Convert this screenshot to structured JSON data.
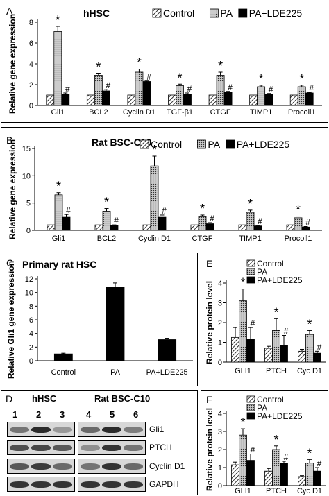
{
  "colors": {
    "control": "hatched",
    "pa": "stipple-grey",
    "lde": "#000000"
  },
  "chart_data": [
    {
      "id": "A",
      "type": "bar",
      "panel_label": "A",
      "title": "hHSC",
      "ylabel": "Relative gene expression",
      "ylim": [
        0,
        8
      ],
      "yticks": [
        0,
        2,
        4,
        6,
        8
      ],
      "categories": [
        "Gli1",
        "BCL2",
        "Cyclin D1",
        "TGF-β1",
        "CTGF",
        "TIMP1",
        "Procoll1"
      ],
      "series": [
        {
          "name": "Control",
          "values": [
            1,
            1,
            1,
            1,
            1,
            1,
            1
          ],
          "errors": [
            0,
            0,
            0,
            0,
            0,
            0,
            0
          ]
        },
        {
          "name": "PA",
          "values": [
            7.1,
            2.9,
            3.2,
            1.9,
            2.9,
            1.8,
            1.8
          ],
          "errors": [
            0.5,
            0.2,
            0.3,
            0.15,
            0.3,
            0.15,
            0.15
          ]
        },
        {
          "name": "PA+LDE225",
          "values": [
            1.1,
            1.4,
            2.3,
            1.1,
            1.3,
            1.1,
            1.2
          ],
          "errors": [
            0.1,
            0.15,
            0.05,
            0.1,
            0.05,
            0.05,
            0.05
          ]
        }
      ],
      "marks": [
        [
          "",
          "*",
          "#"
        ],
        [
          "",
          "*",
          "#"
        ],
        [
          "",
          "*",
          "#"
        ],
        [
          "",
          "*",
          "#"
        ],
        [
          "",
          "*",
          "#"
        ],
        [
          "",
          "*",
          "#"
        ],
        [
          "",
          "*",
          "#"
        ]
      ],
      "legend": "top-right"
    },
    {
      "id": "B",
      "type": "bar",
      "panel_label": "B",
      "title": "Rat BSC-C10",
      "ylabel": "Relative gene expression",
      "ylim": [
        0,
        15
      ],
      "yticks": [
        0,
        5,
        10,
        15
      ],
      "categories": [
        "Gli1",
        "BCL2",
        "Cyclin D1",
        "CTGF",
        "TIMP1",
        "Procoll1"
      ],
      "series": [
        {
          "name": "Control",
          "values": [
            1,
            1,
            1,
            1,
            1,
            1
          ],
          "errors": [
            0,
            0,
            0,
            0,
            0,
            0
          ]
        },
        {
          "name": "PA",
          "values": [
            6.5,
            3.5,
            11.8,
            2.5,
            3.3,
            2.3
          ],
          "errors": [
            0.4,
            0.5,
            1.8,
            0.3,
            0.4,
            0.3
          ]
        },
        {
          "name": "PA+LDE225",
          "values": [
            2.4,
            0.9,
            2.4,
            1.2,
            0.8,
            0.6
          ],
          "errors": [
            0.5,
            0.1,
            0.4,
            0.2,
            0.1,
            0.1
          ]
        }
      ],
      "marks": [
        [
          "",
          "*",
          "#"
        ],
        [
          "",
          "*",
          "#"
        ],
        [
          "",
          "*",
          "#"
        ],
        [
          "",
          "*",
          "#"
        ],
        [
          "",
          "*",
          "#"
        ],
        [
          "",
          "*",
          "#"
        ]
      ],
      "legend": "top-right"
    },
    {
      "id": "C",
      "type": "bar",
      "panel_label": "C",
      "title": "Primary rat HSC",
      "ylabel": "Relative Gli1 gene expression",
      "ylim": [
        0,
        12
      ],
      "yticks": [
        0,
        2,
        4,
        6,
        8,
        10,
        12
      ],
      "categories": [
        "Control",
        "PA",
        "PA+LDE225"
      ],
      "series": [
        {
          "name": "",
          "values": [
            1,
            10.8,
            3.1
          ],
          "errors": [
            0.1,
            0.6,
            0.2
          ]
        }
      ],
      "marks": [
        [
          "",
          "*",
          "#"
        ]
      ],
      "legend": "none"
    },
    {
      "id": "E",
      "type": "bar",
      "panel_label": "E",
      "title": "",
      "ylabel": "Relative protein level",
      "ylim": [
        0,
        4
      ],
      "yticks": [
        0,
        1,
        2,
        3,
        4
      ],
      "categories": [
        "GLI1",
        "PTCH",
        "Cyc D1"
      ],
      "series": [
        {
          "name": "Control",
          "values": [
            1.25,
            0.7,
            0.55
          ],
          "errors": [
            0.5,
            0.1,
            0.1
          ]
        },
        {
          "name": "PA",
          "values": [
            3.1,
            1.6,
            1.4
          ],
          "errors": [
            0.6,
            0.6,
            0.2
          ]
        },
        {
          "name": "PA+LDE225",
          "values": [
            1.15,
            0.85,
            0.45
          ],
          "errors": [
            0.6,
            0.5,
            0.1
          ]
        }
      ],
      "marks": [
        [
          "",
          "*",
          "#"
        ],
        [
          "",
          "*",
          "#"
        ],
        [
          "",
          "*",
          "#"
        ]
      ],
      "legend": "top-right"
    },
    {
      "id": "F",
      "type": "bar",
      "panel_label": "F",
      "title": "",
      "ylabel": "Relative protein level",
      "ylim": [
        0,
        4
      ],
      "yticks": [
        0,
        1,
        2,
        3,
        4
      ],
      "categories": [
        "GLI1",
        "PTCH",
        "Cyc D1"
      ],
      "series": [
        {
          "name": "Control",
          "values": [
            1.15,
            0.8,
            0.5
          ],
          "errors": [
            0.15,
            0.15,
            0.05
          ]
        },
        {
          "name": "PA",
          "values": [
            2.8,
            2.0,
            1.25
          ],
          "errors": [
            0.35,
            0.2,
            0.2
          ]
        },
        {
          "name": "PA+LDE225",
          "values": [
            1.4,
            1.25,
            0.8
          ],
          "errors": [
            0.35,
            0.1,
            0.2
          ]
        }
      ],
      "marks": [
        [
          "",
          "*",
          "#"
        ],
        [
          "",
          "*",
          "#"
        ],
        [
          "",
          "*",
          "#"
        ]
      ],
      "legend": "top-right"
    }
  ],
  "western_blot": {
    "panel_label": "D",
    "groups": [
      "hHSC",
      "Rat BSC-C10"
    ],
    "lanes": [
      "1",
      "2",
      "3",
      "4",
      "5",
      "6"
    ],
    "proteins": [
      "Gli1",
      "PTCH",
      "Cyclin D1",
      "GAPDH"
    ],
    "band_intensity": [
      [
        0.55,
        0.95,
        0.35,
        0.6,
        0.95,
        0.5
      ],
      [
        0.75,
        0.8,
        0.7,
        0.4,
        0.9,
        0.55
      ],
      [
        0.7,
        0.85,
        0.6,
        0.55,
        0.9,
        0.6
      ],
      [
        0.9,
        0.9,
        0.9,
        0.9,
        0.9,
        0.9
      ]
    ]
  }
}
